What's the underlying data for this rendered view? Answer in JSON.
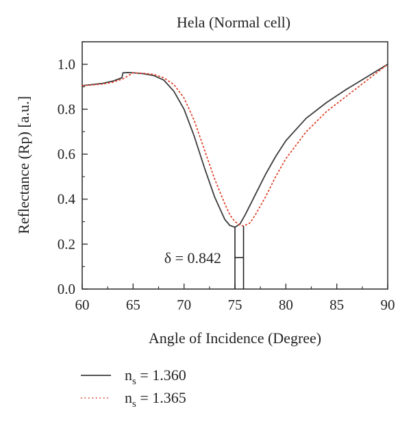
{
  "chart_data": {
    "type": "line",
    "title": "Hela (Normal cell)",
    "xlabel": "Angle of Incidence (Degree)",
    "ylabel": "Reflectance (Rp) [a.u.]",
    "xlim": [
      60,
      90
    ],
    "ylim": [
      0,
      1.1
    ],
    "xticks": [
      60,
      65,
      70,
      75,
      80,
      85,
      90
    ],
    "yticks": [
      "0.0",
      "0.2",
      "0.4",
      "0.6",
      "0.8",
      "1.0"
    ],
    "yticks_values": [
      0,
      0.2,
      0.4,
      0.6,
      0.8,
      1.0
    ],
    "grid": false,
    "legend_position": "bottom-left",
    "annotation": {
      "text": "δ = 0.842",
      "x_from": 75.0,
      "x_to": 75.842
    },
    "series": [
      {
        "name_main": "n",
        "name_sub": "s",
        "name_rest": " = 1.360",
        "style": "solid",
        "color": "#3a3a3a",
        "x": [
          60,
          61,
          62,
          63,
          63.9,
          64,
          64.5,
          65,
          66,
          67,
          68,
          69,
          70,
          71,
          72,
          73,
          73.5,
          74,
          74.5,
          75,
          75.5,
          76,
          77,
          78,
          79,
          80,
          82,
          84,
          86,
          88,
          90
        ],
        "y": [
          0.905,
          0.91,
          0.915,
          0.925,
          0.94,
          0.962,
          0.963,
          0.962,
          0.958,
          0.95,
          0.93,
          0.88,
          0.8,
          0.68,
          0.54,
          0.41,
          0.36,
          0.31,
          0.283,
          0.275,
          0.29,
          0.33,
          0.42,
          0.51,
          0.59,
          0.66,
          0.76,
          0.83,
          0.89,
          0.945,
          1.0
        ]
      },
      {
        "name_main": "n",
        "name_sub": "s",
        "name_rest": " = 1.365",
        "style": "dotted",
        "color": "#e0402a",
        "x": [
          60,
          61,
          62,
          63,
          64,
          65,
          66,
          67,
          68,
          69,
          70,
          71,
          72,
          73,
          74,
          74.5,
          75,
          75.5,
          75.85,
          76.5,
          77,
          78,
          79,
          80,
          82,
          84,
          86,
          88,
          90
        ],
        "y": [
          0.905,
          0.908,
          0.912,
          0.92,
          0.935,
          0.962,
          0.96,
          0.955,
          0.94,
          0.91,
          0.85,
          0.75,
          0.62,
          0.49,
          0.38,
          0.33,
          0.3,
          0.285,
          0.28,
          0.295,
          0.33,
          0.41,
          0.5,
          0.58,
          0.7,
          0.79,
          0.86,
          0.93,
          1.0
        ]
      }
    ]
  }
}
